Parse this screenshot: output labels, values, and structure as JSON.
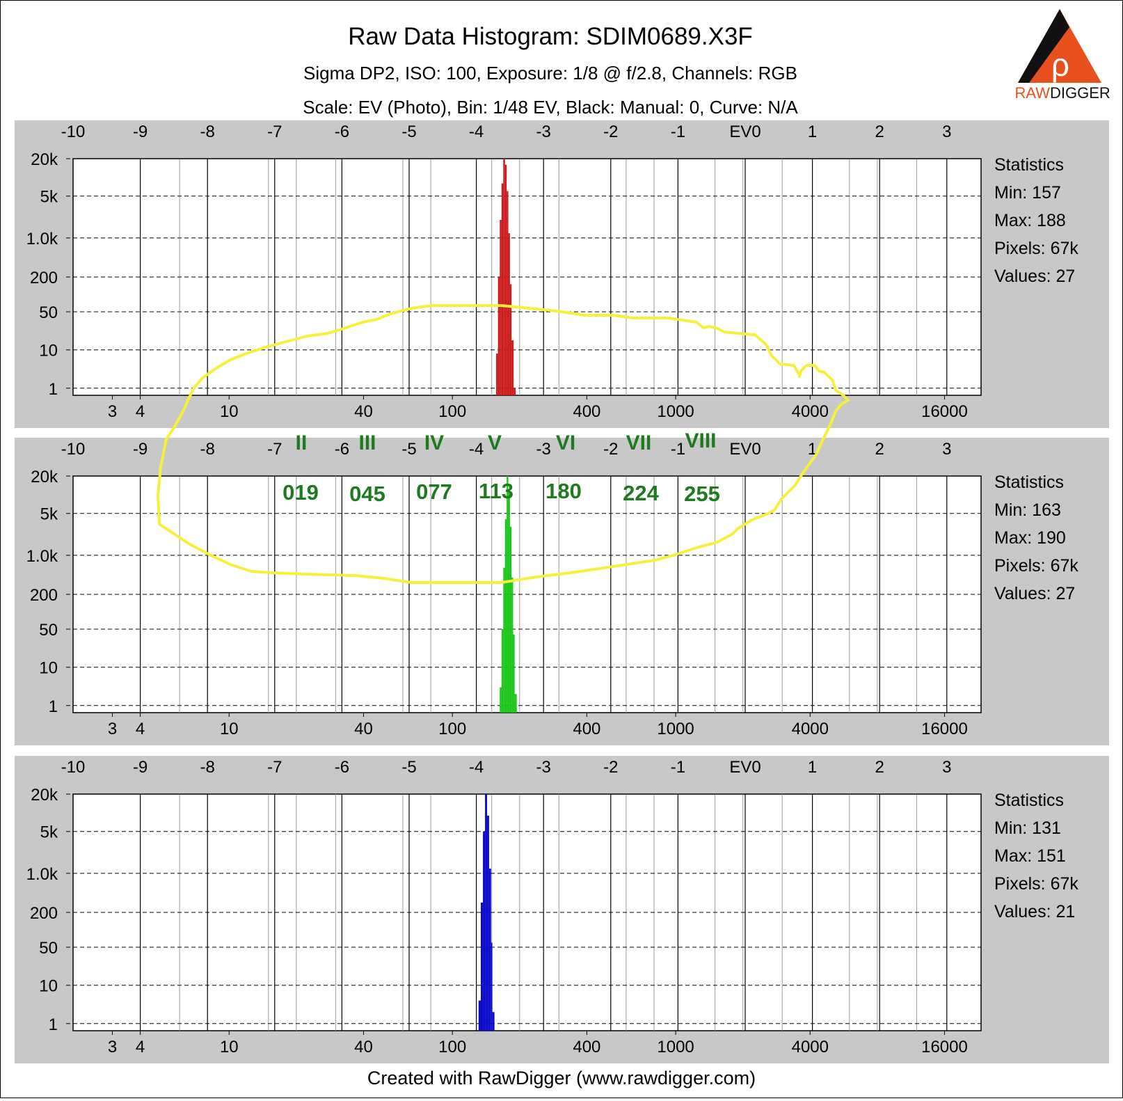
{
  "header": {
    "title": "Raw Data Histogram: SDIM0689.X3F",
    "subtitle1": "Sigma DP2, ISO: 100, Exposure: 1/8 @ f/2.8, Channels: RGB",
    "subtitle2": "Scale: EV (Photo), Bin: 1/48 EV, Black: Manual: 0, Curve: N/A"
  },
  "logo": {
    "text_raw": "RAW",
    "text_digger": "DIGGER",
    "glyph": "ρ"
  },
  "footer": {
    "text": "Created with RawDigger (www.rawdigger.com)"
  },
  "axes": {
    "ev_ticks": [
      "-10",
      "-9",
      "-8",
      "-7",
      "-6",
      "-5",
      "-4",
      "-3",
      "-2",
      "-1",
      "EV0",
      "1",
      "2",
      "3"
    ],
    "y_ticks": [
      "20k",
      "5k",
      "1.0k",
      "200",
      "50",
      "10",
      "1"
    ],
    "value_ticks": [
      "3",
      "4",
      "10",
      "40",
      "100",
      "400",
      "1000",
      "4000",
      "16000"
    ]
  },
  "statistics_label": "Statistics",
  "zone_annotations": {
    "roman": [
      "II",
      "III",
      "IV",
      "V",
      "VI",
      "VII",
      "VIII"
    ],
    "codes": [
      "019",
      "045",
      "077",
      "113",
      "180",
      "224",
      "255"
    ]
  },
  "chart_data": [
    {
      "type": "bar",
      "channel": "red",
      "color": "#cc1b1b",
      "x_scale": "log2 (raw value)",
      "y_scale": "log (pixel count)",
      "stats": {
        "min": "Min: 157",
        "max": "Max: 188",
        "pixels": "Pixels: 67k",
        "values": "Values: 27"
      },
      "x": [
        157,
        160,
        163,
        166,
        169,
        172,
        175,
        178,
        181,
        184,
        188
      ],
      "counts": [
        8,
        200,
        2000,
        8000,
        20000,
        16000,
        6000,
        1200,
        150,
        15,
        1
      ]
    },
    {
      "type": "bar",
      "channel": "green",
      "color": "#19c619",
      "x_scale": "log2 (raw value)",
      "y_scale": "log (pixel count)",
      "stats": {
        "min": "Min: 163",
        "max": "Max: 190",
        "pixels": "Pixels: 67k",
        "values": "Values: 27"
      },
      "x": [
        163,
        166,
        169,
        172,
        175,
        178,
        181,
        184,
        187,
        190
      ],
      "counts": [
        3,
        50,
        600,
        4000,
        20000,
        12000,
        3000,
        400,
        40,
        2
      ]
    },
    {
      "type": "bar",
      "channel": "blue",
      "color": "#0d0dcc",
      "x_scale": "log2 (raw value)",
      "y_scale": "log (pixel count)",
      "stats": {
        "min": "Min: 131",
        "max": "Max: 151",
        "pixels": "Pixels: 67k",
        "values": "Values: 21"
      },
      "x": [
        131,
        134,
        137,
        140,
        143,
        146,
        149,
        151
      ],
      "counts": [
        4,
        300,
        5000,
        20000,
        9000,
        1200,
        60,
        2
      ]
    }
  ]
}
